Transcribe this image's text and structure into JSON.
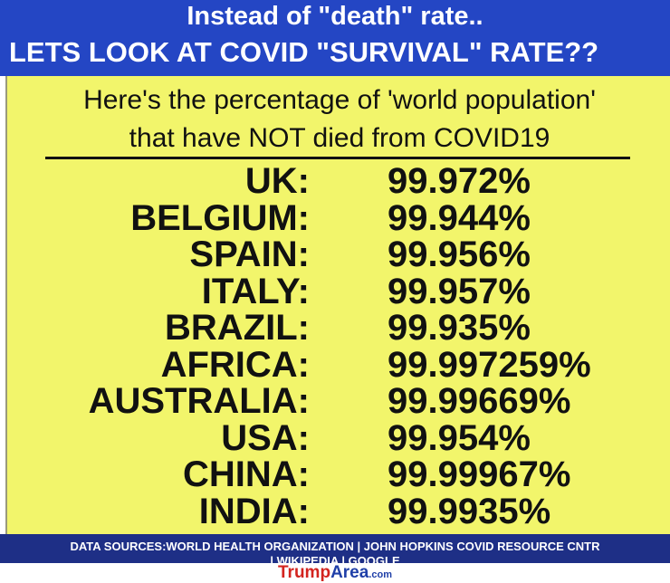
{
  "header": {
    "line1": "Instead of \"death\" rate..",
    "line2": "LETS LOOK AT COVID \"SURVIVAL\" RATE??"
  },
  "subtitle": {
    "line1": "Here's the percentage of 'world population'",
    "line2": "that have NOT died from COVID19"
  },
  "rows": [
    {
      "country": "UK:",
      "rate": "99.972%"
    },
    {
      "country": "BELGIUM:",
      "rate": "99.944%"
    },
    {
      "country": "SPAIN:",
      "rate": "99.956%"
    },
    {
      "country": "ITALY:",
      "rate": "99.957%"
    },
    {
      "country": "BRAZIL:",
      "rate": "99.935%"
    },
    {
      "country": "AFRICA:",
      "rate": "99.997259%"
    },
    {
      "country": "AUSTRALIA:",
      "rate": "99.99669%"
    },
    {
      "country": "USA:",
      "rate": "99.954%"
    },
    {
      "country": "CHINA:",
      "rate": "99.99967%"
    },
    {
      "country": "INDIA:",
      "rate": "99.9935%"
    }
  ],
  "footer": {
    "line1": "DATA SOURCES:WORLD HEALTH ORGANIZATION | JOHN HOPKINS COVID RESOURCE CNTR",
    "line2": "| WIKIPEDIA | GOOGLE"
  },
  "watermark": {
    "part1": "Trump",
    "part2": "Area",
    "part3": ".com"
  }
}
